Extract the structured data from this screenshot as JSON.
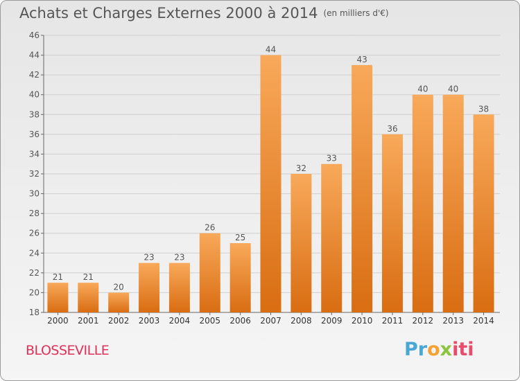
{
  "chart_title": "Achats et Charges Externes 2000 à 2014",
  "chart_unit": "(en milliers d'€)",
  "commune": "BLOSSEVILLE",
  "logo": {
    "parts": [
      "Pr",
      "o",
      "x",
      "iti"
    ]
  },
  "colors": {
    "bar_top": "#f8a95a",
    "bar_bottom": "#d96d12",
    "commune": "#e0305a",
    "grid": "#cfcfcf"
  },
  "chart_data": {
    "type": "bar",
    "title": "Achats et Charges Externes 2000 à 2014",
    "subtitle": "(en milliers d'€)",
    "xlabel": "",
    "ylabel": "",
    "categories": [
      "2000",
      "2001",
      "2002",
      "2003",
      "2004",
      "2005",
      "2006",
      "2007",
      "2008",
      "2009",
      "2010",
      "2011",
      "2012",
      "2013",
      "2014"
    ],
    "values": [
      21,
      21,
      20,
      23,
      23,
      26,
      25,
      44,
      32,
      33,
      43,
      36,
      40,
      40,
      38
    ],
    "ylim": [
      18,
      46
    ],
    "yticks": [
      18,
      20,
      22,
      24,
      26,
      28,
      30,
      32,
      34,
      36,
      38,
      40,
      42,
      44,
      46
    ],
    "grid": true,
    "legend": "none"
  }
}
